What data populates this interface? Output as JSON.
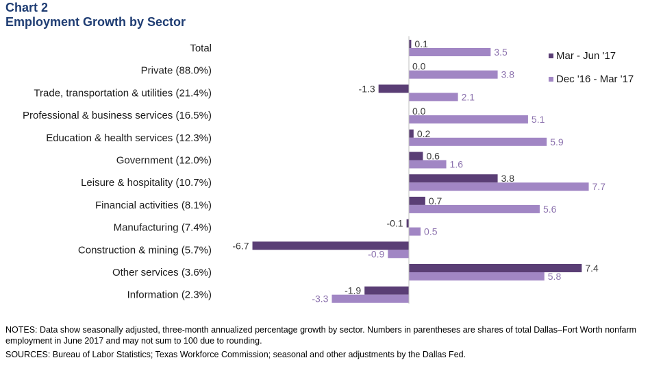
{
  "title": "Chart 2",
  "subtitle": "Employment Growth by Sector",
  "notes": "NOTES: Data show seasonally adjusted, three-month annualized percentage growth by sector. Numbers in parentheses are shares of total Dallas–Fort Worth nonfarm employment in June 2017 and may not sum to 100 due to rounding.",
  "sources": "SOURCES: Bureau of Labor Statistics; Texas Workforce Commission; seasonal and other adjustments by the Dallas Fed.",
  "colors": {
    "series1": "#5A3E75",
    "series2": "#A186C4",
    "label1": "#3a3a3a",
    "label2": "#8C72AE",
    "category": "#1a1a1a"
  },
  "chart_data": {
    "type": "bar",
    "orientation": "horizontal",
    "categories": [
      "Total",
      "Private (88.0%)",
      "Trade, transportation & utilities (21.4%)",
      "Professional & business services (16.5%)",
      "Education & health services (12.3%)",
      "Government (12.0%)",
      "Leisure & hospitality (10.7%)",
      "Financial activities (8.1%)",
      "Manufacturing (7.4%)",
      "Construction & mining (5.7%)",
      "Other services (3.6%)",
      "Information (2.3%)"
    ],
    "series": [
      {
        "name": "Mar - Jun '17",
        "values": [
          0.1,
          0.0,
          -1.3,
          0.0,
          0.2,
          0.6,
          3.8,
          0.7,
          -0.1,
          -6.7,
          7.4,
          -1.9
        ],
        "labels": [
          "0.1",
          "0.0",
          "-1.3",
          "0.0",
          "0.2",
          "0.6",
          "3.8",
          "0.7",
          "-0.1",
          "-6.7",
          "7.4",
          "-1.9"
        ]
      },
      {
        "name": "Dec '16 - Mar '17",
        "values": [
          3.5,
          3.8,
          2.1,
          5.1,
          5.9,
          1.6,
          7.7,
          5.6,
          0.5,
          -0.9,
          5.8,
          -3.3
        ],
        "labels": [
          "3.5",
          "3.8",
          "2.1",
          "5.1",
          "5.9",
          "1.6",
          "7.7",
          "5.6",
          "0.5",
          "-0.9",
          "5.8",
          "-3.3"
        ]
      }
    ],
    "legend_position": "top-right",
    "grid": false
  }
}
